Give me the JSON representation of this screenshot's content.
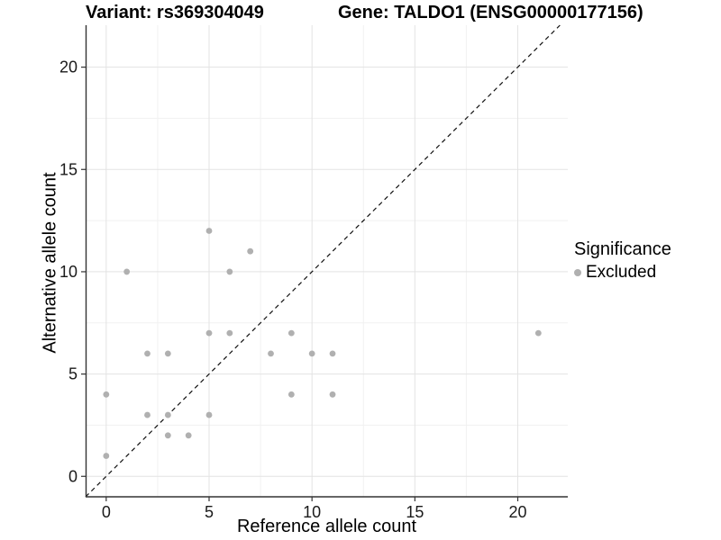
{
  "titles": {
    "variant": "Variant: rs369304049",
    "gene": "Gene: TALDO1 (ENSG00000177156)"
  },
  "legend": {
    "title": "Significance",
    "items": [
      {
        "label": "Excluded",
        "color": "#b0b0b0"
      }
    ],
    "position": "right"
  },
  "colors": {
    "background": "#ffffff",
    "point": "#b0b0b0",
    "grid_major": "#e3e3e3",
    "grid_minor": "#f1f1f1",
    "axis_line": "#333333",
    "tick_text": "#1a1a1a",
    "reference_line": "#111111"
  },
  "chart_data": {
    "type": "scatter",
    "title_left": "Variant: rs369304049",
    "title_right": "Gene: TALDO1 (ENSG00000177156)",
    "xlabel": "Reference allele count",
    "ylabel": "Alternative allele count",
    "xlim": [
      -1,
      22.43
    ],
    "ylim": [
      -1,
      22.05
    ],
    "x_ticks": [
      0,
      5,
      10,
      15,
      20
    ],
    "y_ticks": [
      0,
      5,
      10,
      15,
      20
    ],
    "x_minor": [
      2.5,
      7.5,
      12.5,
      17.5
    ],
    "y_minor": [
      2.5,
      7.5,
      12.5,
      17.5
    ],
    "grid": true,
    "legend_position": "right",
    "series": [
      {
        "name": "Excluded",
        "color": "#b0b0b0",
        "points": [
          [
            0,
            1
          ],
          [
            0,
            4
          ],
          [
            1,
            10
          ],
          [
            2,
            3
          ],
          [
            2,
            6
          ],
          [
            3,
            2
          ],
          [
            3,
            3
          ],
          [
            3,
            6
          ],
          [
            4,
            2
          ],
          [
            5,
            3
          ],
          [
            5,
            7
          ],
          [
            5,
            12
          ],
          [
            6,
            7
          ],
          [
            6,
            10
          ],
          [
            7,
            11
          ],
          [
            8,
            6
          ],
          [
            9,
            4
          ],
          [
            9,
            7
          ],
          [
            10,
            6
          ],
          [
            11,
            4
          ],
          [
            11,
            6
          ],
          [
            21,
            7
          ]
        ]
      }
    ],
    "reference_line": {
      "type": "identity",
      "style": "dashed"
    }
  }
}
